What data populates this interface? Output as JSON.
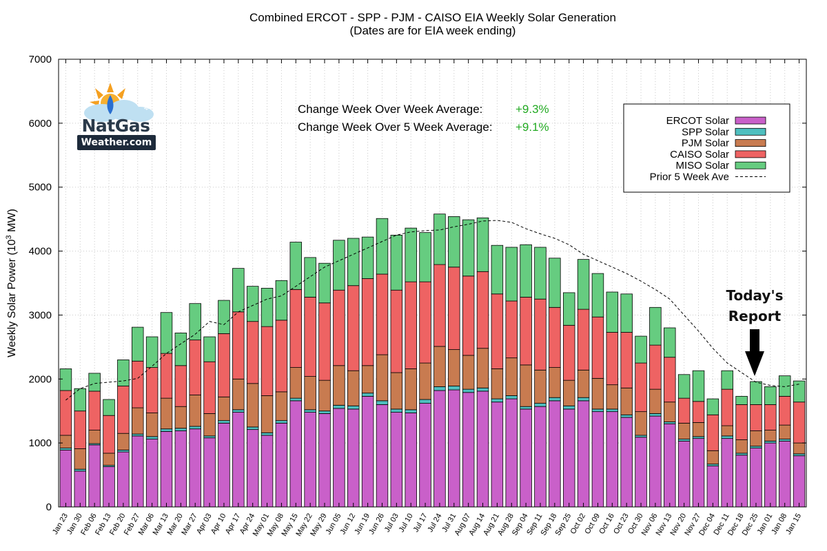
{
  "chart_data": {
    "type": "bar",
    "stacked": true,
    "title": "Combined ERCOT - SPP - PJM - CAISO EIA Weekly Solar Generation",
    "subtitle": "(Dates are for EIA week ending)",
    "ylabel": "Weekly Solar Power (10",
    "ylabel_sup": "3",
    "ylabel_tail": " MW)",
    "ylim": [
      0,
      7000
    ],
    "yticks": [
      "0",
      "1000",
      "2000",
      "3000",
      "4000",
      "5000",
      "6000",
      "7000"
    ],
    "grid": true,
    "categories": [
      "Jan 23",
      "Jan 30",
      "Feb 06",
      "Feb 13",
      "Feb 20",
      "Feb 27",
      "Mar 06",
      "Mar 13",
      "Mar 20",
      "Mar 27",
      "Apr 03",
      "Apr 10",
      "Apr 17",
      "Apr 24",
      "May 01",
      "May 08",
      "May 15",
      "May 22",
      "May 29",
      "Jun 05",
      "Jun 12",
      "Jun 19",
      "Jun 26",
      "Jul 03",
      "Jul 10",
      "Jul 17",
      "Jul 24",
      "Jul 31",
      "Aug 07",
      "Aug 14",
      "Aug 21",
      "Aug 28",
      "Sep 04",
      "Sep 11",
      "Sep 18",
      "Sep 25",
      "Oct 02",
      "Oct 09",
      "Oct 16",
      "Oct 23",
      "Oct 30",
      "Nov 06",
      "Nov 13",
      "Nov 20",
      "Nov 27",
      "Dec 04",
      "Dec 11",
      "Dec 18",
      "Dec 25",
      "Jan 01",
      "Jan 08",
      "Jan 15"
    ],
    "series": [
      {
        "name": "ERCOT Solar",
        "color": "#c960c9",
        "values": [
          890,
          560,
          970,
          630,
          860,
          1110,
          1060,
          1180,
          1190,
          1220,
          1080,
          1310,
          1480,
          1210,
          1120,
          1310,
          1660,
          1480,
          1460,
          1540,
          1530,
          1730,
          1600,
          1480,
          1470,
          1620,
          1820,
          1830,
          1790,
          1810,
          1640,
          1690,
          1530,
          1570,
          1660,
          1530,
          1660,
          1490,
          1490,
          1400,
          1090,
          1420,
          1300,
          1030,
          1070,
          640,
          1070,
          810,
          920,
          1000,
          1030,
          800
        ]
      },
      {
        "name": "SPP Solar",
        "color": "#4fbfbf",
        "values": [
          30,
          30,
          20,
          20,
          30,
          30,
          40,
          40,
          40,
          40,
          30,
          40,
          40,
          40,
          40,
          40,
          40,
          40,
          40,
          50,
          50,
          50,
          60,
          50,
          50,
          60,
          60,
          60,
          50,
          50,
          50,
          50,
          40,
          50,
          50,
          50,
          50,
          40,
          40,
          40,
          30,
          40,
          30,
          30,
          30,
          30,
          40,
          30,
          30,
          30,
          30,
          30
        ]
      },
      {
        "name": "PJM Solar",
        "color": "#c87b50",
        "values": [
          200,
          320,
          210,
          190,
          260,
          410,
          370,
          480,
          340,
          490,
          350,
          370,
          480,
          680,
          580,
          450,
          480,
          520,
          480,
          620,
          550,
          430,
          720,
          570,
          640,
          570,
          630,
          570,
          530,
          620,
          470,
          590,
          650,
          520,
          470,
          400,
          430,
          480,
          380,
          420,
          370,
          380,
          310,
          250,
          220,
          210,
          160,
          210,
          240,
          170,
          220,
          170
        ]
      },
      {
        "name": "CAISO Solar",
        "color": "#ee6363",
        "values": [
          700,
          590,
          610,
          590,
          740,
          730,
          710,
          700,
          640,
          860,
          810,
          990,
          1050,
          970,
          1080,
          1120,
          1220,
          1240,
          1210,
          1180,
          1330,
          1360,
          1260,
          1290,
          1360,
          1270,
          1280,
          1290,
          1240,
          1200,
          1170,
          890,
          1060,
          1110,
          940,
          860,
          950,
          960,
          820,
          870,
          760,
          690,
          700,
          390,
          330,
          560,
          570,
          550,
          410,
          400,
          450,
          640
        ]
      },
      {
        "name": "MISO Solar",
        "color": "#66cc80",
        "values": [
          340,
          350,
          280,
          250,
          410,
          530,
          480,
          640,
          510,
          570,
          390,
          520,
          680,
          550,
          600,
          620,
          740,
          620,
          620,
          780,
          740,
          650,
          870,
          860,
          840,
          770,
          790,
          790,
          880,
          840,
          760,
          840,
          820,
          810,
          770,
          510,
          780,
          680,
          630,
          600,
          420,
          590,
          460,
          370,
          480,
          250,
          290,
          130,
          360,
          280,
          320,
          330
        ]
      }
    ],
    "line_series": {
      "name": "Prior 5 Week Ave",
      "style": "dashed",
      "color": "#000000",
      "values": [
        1670,
        1850,
        1930,
        1950,
        1970,
        2010,
        2200,
        2400,
        2550,
        2700,
        2900,
        2850,
        3050,
        3150,
        3250,
        3300,
        3450,
        3600,
        3750,
        3850,
        3950,
        4050,
        4150,
        4250,
        4300,
        4320,
        4330,
        4380,
        4420,
        4470,
        4480,
        4450,
        4350,
        4270,
        4200,
        4100,
        3950,
        3850,
        3750,
        3650,
        3530,
        3400,
        3250,
        3000,
        2750,
        2480,
        2250,
        2100,
        1950,
        1900,
        1880,
        1920
      ]
    },
    "legend_position": "top-right"
  },
  "stats": {
    "wow_label": "Change Week Over Week Average:",
    "wow_value": "+9.3%",
    "five_week_label": "Change Week Over 5 Week Average:",
    "five_week_value": "+9.1%",
    "value_color": "#22aa22"
  },
  "logo": {
    "word1": "NatGas",
    "word2": "Weather.com"
  },
  "annotation": {
    "line1": "Today's",
    "line2": "Report"
  }
}
